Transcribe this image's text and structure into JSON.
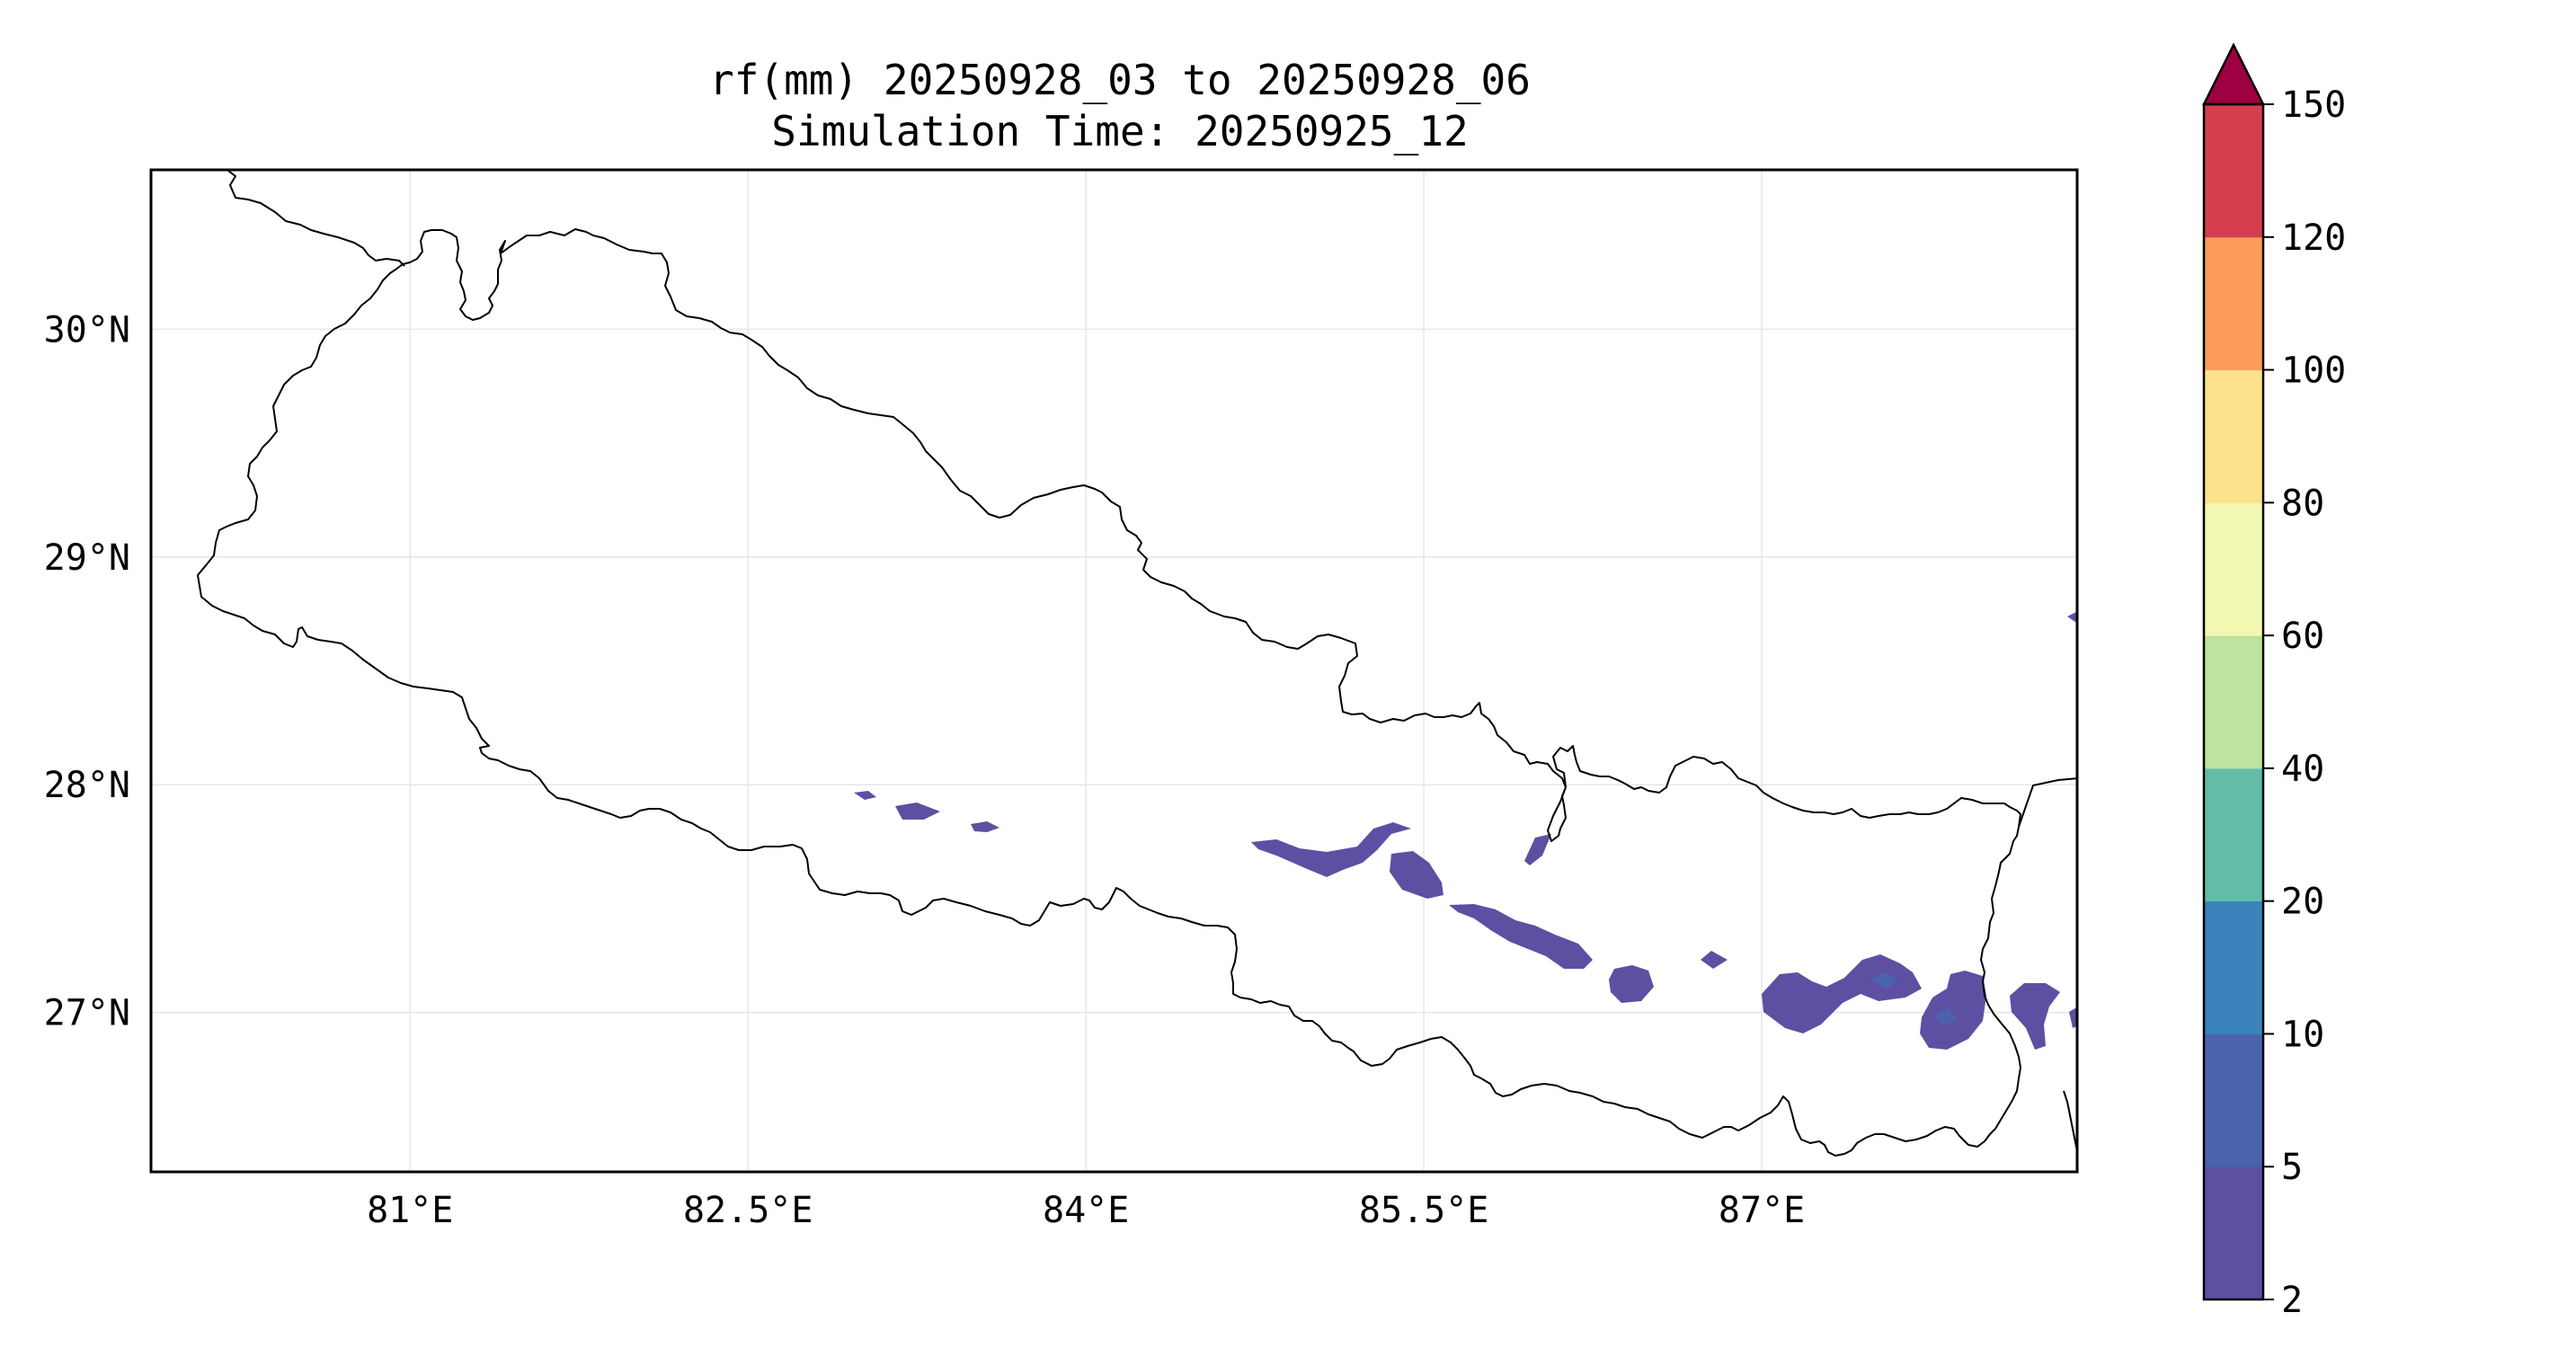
{
  "title_line1": "rf(mm) 20250928_03 to 20250928_06",
  "title_line2": "Simulation Time: 20250925_12",
  "map": {
    "lon_range": [
      79.85,
      88.4
    ],
    "lat_range": [
      26.3,
      30.7
    ],
    "lon_ticks": [
      {
        "value": 81.0,
        "label": "81°E"
      },
      {
        "value": 82.5,
        "label": "82.5°E"
      },
      {
        "value": 84.0,
        "label": "84°E"
      },
      {
        "value": 85.5,
        "label": "85.5°E"
      },
      {
        "value": 87.0,
        "label": "87°E"
      }
    ],
    "lat_ticks": [
      {
        "value": 30.0,
        "label": "30°N"
      },
      {
        "value": 29.0,
        "label": "29°N"
      },
      {
        "value": 28.0,
        "label": "28°N"
      },
      {
        "value": 27.0,
        "label": "27°N"
      }
    ],
    "gridlines": true,
    "border_color": "#000000"
  },
  "colorbar": {
    "levels": [
      "2",
      "5",
      "10",
      "20",
      "40",
      "60",
      "80",
      "100",
      "120",
      "150"
    ],
    "colors": [
      "#5e4fa2",
      "#4b62ad",
      "#3a83bb",
      "#62bca8",
      "#bce49f",
      "#f3f8b2",
      "#fde28c",
      "#fb9d59",
      "#d63e50"
    ],
    "extend_color": "#9e0142",
    "extend": "max"
  },
  "rain_color": "#5e4fa2"
}
